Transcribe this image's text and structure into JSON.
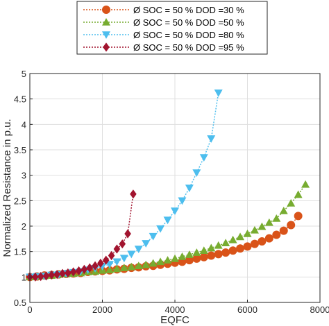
{
  "chart_data": {
    "type": "line",
    "title": "",
    "xlabel": "EQFC",
    "ylabel": "Normalized Resistance in p.u.",
    "xlim": [
      0,
      8000
    ],
    "ylim": [
      0.5,
      5
    ],
    "xticks": [
      0,
      2000,
      4000,
      6000,
      8000
    ],
    "yticks": [
      0.5,
      1,
      1.5,
      2,
      2.5,
      3,
      3.5,
      4,
      4.5,
      5
    ],
    "grid": true,
    "legend": "top-center",
    "series": [
      {
        "name": "Ø SOC = 50 % DOD =30 %",
        "color": "#D95319",
        "marker": "circle",
        "x": [
          0,
          200,
          400,
          600,
          800,
          1000,
          1200,
          1400,
          1600,
          1800,
          2000,
          2200,
          2400,
          2600,
          2800,
          3000,
          3200,
          3400,
          3600,
          3800,
          4000,
          4200,
          4400,
          4600,
          4800,
          5000,
          5200,
          5400,
          5600,
          5800,
          6000,
          6200,
          6400,
          6600,
          6800,
          7000,
          7200,
          7400
        ],
        "y": [
          1.0,
          1.01,
          1.03,
          1.04,
          1.05,
          1.06,
          1.07,
          1.08,
          1.1,
          1.11,
          1.12,
          1.13,
          1.15,
          1.16,
          1.18,
          1.19,
          1.21,
          1.22,
          1.24,
          1.26,
          1.28,
          1.3,
          1.33,
          1.36,
          1.39,
          1.42,
          1.45,
          1.48,
          1.52,
          1.56,
          1.6,
          1.65,
          1.7,
          1.76,
          1.83,
          1.91,
          2.02,
          2.2
        ]
      },
      {
        "name": "Ø SOC = 50 % DOD =50 %",
        "color": "#77AC30",
        "marker": "triangle-up",
        "x": [
          0,
          200,
          400,
          600,
          800,
          1000,
          1200,
          1400,
          1600,
          1800,
          2000,
          2200,
          2400,
          2600,
          2800,
          3000,
          3200,
          3400,
          3600,
          3800,
          4000,
          4200,
          4400,
          4600,
          4800,
          5000,
          5200,
          5400,
          5600,
          5800,
          6000,
          6200,
          6400,
          6600,
          6800,
          7000,
          7200,
          7400,
          7600
        ],
        "y": [
          1.0,
          1.01,
          1.02,
          1.03,
          1.05,
          1.06,
          1.07,
          1.08,
          1.1,
          1.11,
          1.13,
          1.14,
          1.16,
          1.18,
          1.2,
          1.22,
          1.24,
          1.27,
          1.3,
          1.33,
          1.36,
          1.4,
          1.44,
          1.48,
          1.52,
          1.57,
          1.62,
          1.67,
          1.73,
          1.79,
          1.85,
          1.92,
          1.99,
          2.07,
          2.15,
          2.3,
          2.45,
          2.62,
          2.82
        ]
      },
      {
        "name": "Ø SOC = 50 % DOD =80 %",
        "color": "#4DBEEE",
        "marker": "triangle-down",
        "x": [
          0,
          200,
          400,
          600,
          800,
          1000,
          1200,
          1400,
          1600,
          1800,
          2000,
          2200,
          2400,
          2600,
          2800,
          3000,
          3200,
          3400,
          3600,
          3800,
          4000,
          4200,
          4400,
          4600,
          4800,
          5000,
          5200
        ],
        "y": [
          1.0,
          1.01,
          1.02,
          1.04,
          1.05,
          1.07,
          1.09,
          1.11,
          1.14,
          1.17,
          1.21,
          1.25,
          1.3,
          1.37,
          1.45,
          1.55,
          1.66,
          1.8,
          1.95,
          2.12,
          2.3,
          2.5,
          2.75,
          3.05,
          3.35,
          3.72,
          4.62
        ]
      },
      {
        "name": "Ø SOC = 50 % DOD =95 %",
        "color": "#A2142F",
        "marker": "diamond",
        "x": [
          0,
          150,
          300,
          450,
          600,
          750,
          900,
          1050,
          1200,
          1350,
          1500,
          1650,
          1800,
          1950,
          2100,
          2250,
          2400,
          2550,
          2700,
          2850
        ],
        "y": [
          1.0,
          1.0,
          1.01,
          1.02,
          1.04,
          1.05,
          1.07,
          1.08,
          1.1,
          1.12,
          1.15,
          1.18,
          1.22,
          1.27,
          1.33,
          1.42,
          1.55,
          1.65,
          1.85,
          2.63
        ]
      }
    ]
  }
}
